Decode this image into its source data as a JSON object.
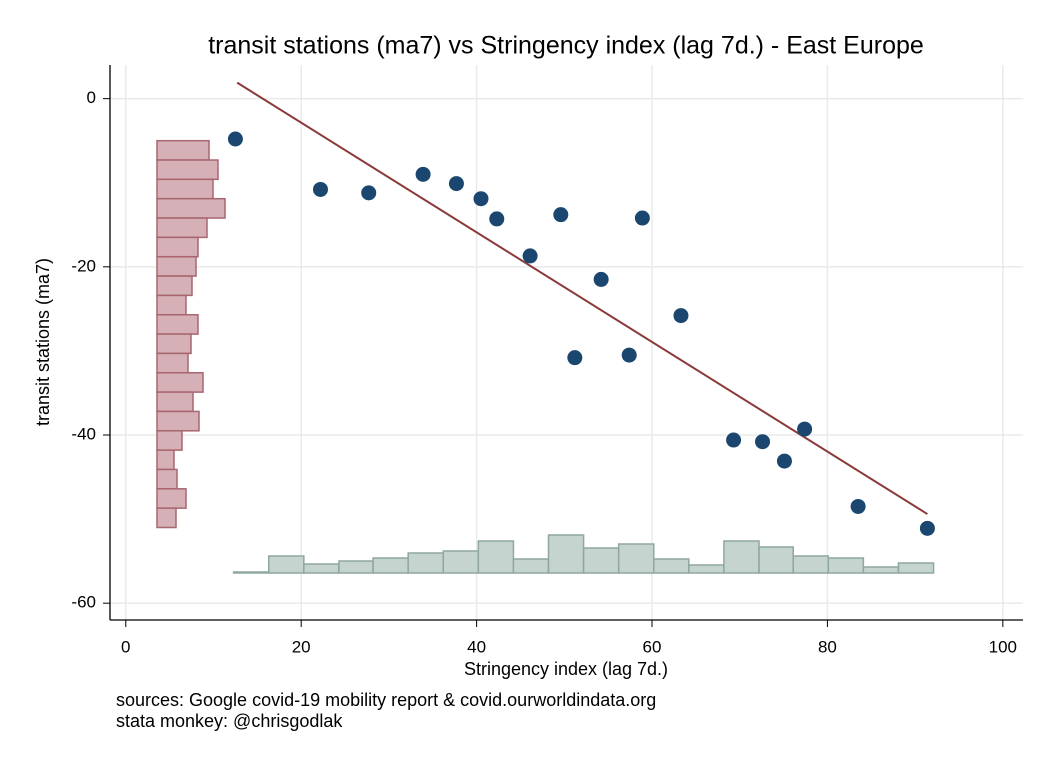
{
  "chart_data": {
    "type": "scatter",
    "title": "transit stations (ma7) vs Stringency index (lag 7d.) - East Europe",
    "x_label": "Stringency index (lag 7d.)",
    "y_label": "transit stations (ma7)",
    "notes": [
      "sources: Google covid-19 mobility report & covid.ourworldindata.org",
      "stata monkey: @chrisgodlak"
    ],
    "xlim": [
      -1.8,
      102.3
    ],
    "ylim": [
      -62,
      4
    ],
    "xticks": [
      0,
      20,
      40,
      60,
      80,
      100
    ],
    "yticks": [
      0,
      -20,
      -40,
      -60
    ],
    "grid": true,
    "series": [
      {
        "color": "#1a4670",
        "x": [
          12.5,
          22.2,
          27.7,
          33.9,
          37.7,
          40.5,
          42.3,
          46.1,
          49.6,
          51.2,
          54.2,
          57.4,
          58.9,
          63.3,
          69.3,
          72.6,
          75.1,
          77.4,
          83.5,
          91.4
        ],
        "values": [
          -4.8,
          -10.8,
          -11.2,
          -9.0,
          -10.1,
          -11.9,
          -14.3,
          -18.7,
          -13.8,
          -30.8,
          -21.5,
          -30.5,
          -14.2,
          -25.8,
          -40.6,
          -40.8,
          -43.1,
          -39.3,
          -48.5,
          -51.1
        ]
      }
    ],
    "fit": {
      "color": "#8b3a3a",
      "x": [
        12.7,
        91.4
      ],
      "values": [
        1.9,
        -49.4
      ]
    },
    "x_hist": {
      "color": "#c6d4d0",
      "edge": "#8fa7a1",
      "bins": [
        12.3,
        16.3,
        20.3,
        24.3,
        28.2,
        32.2,
        36.2,
        40.2,
        44.2,
        48.2,
        52.2,
        56.2,
        60.2,
        64.2,
        68.2,
        72.2,
        76.1,
        80.1,
        84.1,
        88.1,
        92.1
      ],
      "values": [
        0.1,
        1.7,
        0.9,
        1.2,
        1.5,
        2.0,
        2.2,
        3.2,
        1.4,
        3.8,
        2.5,
        2.9,
        1.4,
        0.8,
        3.2,
        2.6,
        1.7,
        1.5,
        0.6,
        1.0
      ]
    },
    "y_hist": {
      "color": "#d5b0b6",
      "edge": "#a8666f",
      "bins": [
        -5.0,
        -7.3,
        -9.6,
        -11.9,
        -14.2,
        -16.5,
        -18.8,
        -21.1,
        -23.4,
        -25.7,
        -28.0,
        -30.3,
        -32.6,
        -34.9,
        -37.2,
        -39.5,
        -41.8,
        -44.1,
        -46.4,
        -48.7,
        -51.0
      ],
      "values": [
        5.2,
        6.1,
        5.6,
        6.8,
        5.0,
        4.1,
        3.9,
        3.5,
        2.9,
        4.1,
        3.4,
        3.1,
        4.6,
        3.6,
        4.2,
        2.5,
        1.7,
        2.0,
        2.9,
        1.9
      ]
    }
  }
}
